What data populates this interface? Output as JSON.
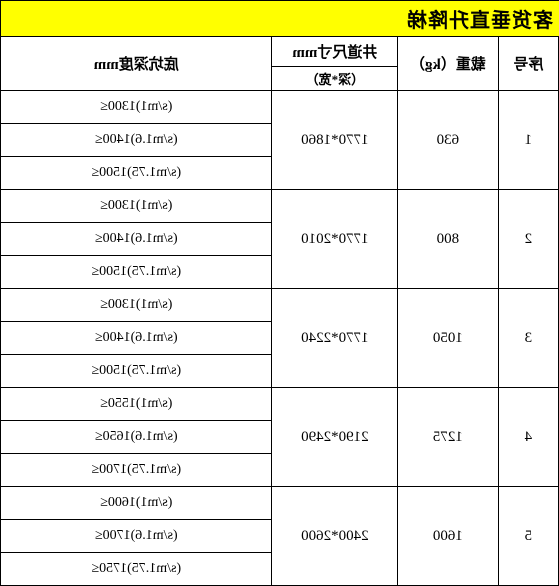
{
  "title": "客货垂直升降梯",
  "headers": {
    "seq": "序号",
    "load": "载重（kg）",
    "shaft_top": "井道尺寸mm",
    "shaft_sub": "（深*宽）",
    "depth": "底坑深度mm"
  },
  "rows": [
    {
      "seq": "1",
      "load": "630",
      "shaft": "1770*1860",
      "depths": [
        "(s/m1)1300≤",
        "(s/m1.6)1400≤",
        "(s/m1.75)1500≤"
      ]
    },
    {
      "seq": "2",
      "load": "800",
      "shaft": "1770*2010",
      "depths": [
        "(s/m1)1300≤",
        "(s/m1.6)1400≤",
        "(s/m1.75)1500≤"
      ]
    },
    {
      "seq": "3",
      "load": "1050",
      "shaft": "1770*2240",
      "depths": [
        "(s/m1)1300≤",
        "(s/m1.6)1400≤",
        "(s/m1.75)1500≤"
      ]
    },
    {
      "seq": "4",
      "load": "1275",
      "shaft": "2190*2490",
      "depths": [
        "(s/m1)1550≤",
        "(s/m1.6)1650≤",
        "(s/m1.75)1700≤"
      ]
    },
    {
      "seq": "5",
      "load": "1600",
      "shaft": "2400*2600",
      "depths": [
        "(s/m1)1600≤",
        "(s/m1.6)1700≤",
        "(s/m1.75)1750≤"
      ]
    }
  ],
  "styles": {
    "title_bg": "#ffff00",
    "border_color": "#000000",
    "bg_color": "#ffffff",
    "font_main": 15,
    "font_title": 20
  }
}
